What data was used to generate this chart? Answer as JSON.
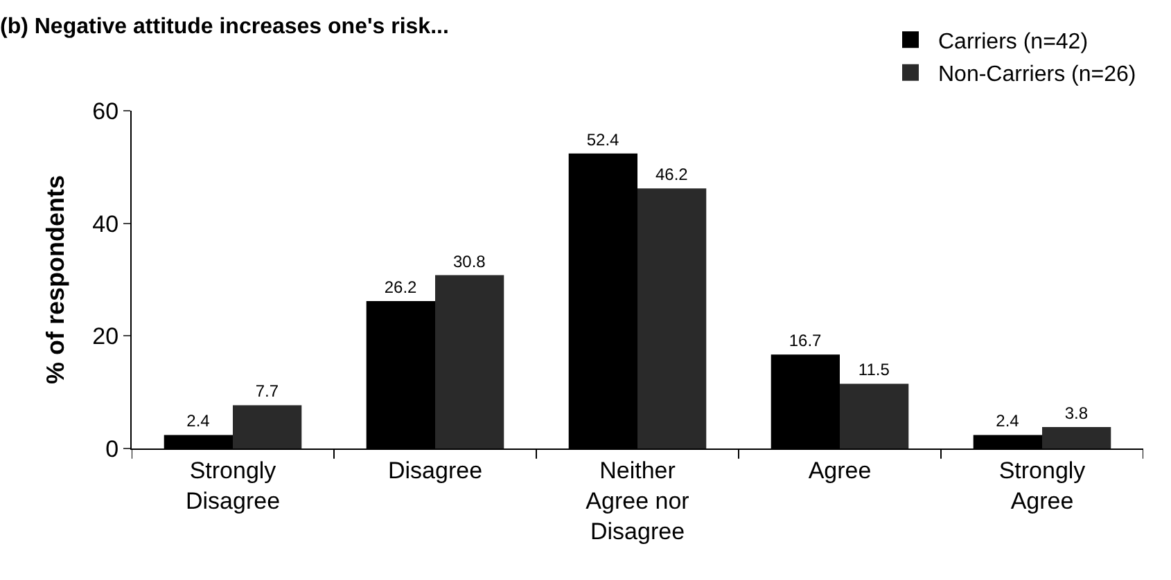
{
  "chart_data": {
    "type": "bar",
    "title": "(b) Negative attitude increases one's risk...",
    "ylabel": "% of respondents",
    "categories": [
      "Strongly Disagree",
      "Disagree",
      "Neither Agree nor Disagree",
      "Agree",
      "Strongly Agree"
    ],
    "series": [
      {
        "name": "Carriers (n=42)",
        "color": "#000000",
        "values": [
          2.4,
          26.2,
          52.4,
          16.7,
          2.4
        ]
      },
      {
        "name": "Non-Carriers (n=26)",
        "color": "#2a2a2a",
        "values": [
          7.7,
          30.8,
          46.2,
          11.5,
          3.8
        ]
      }
    ],
    "ylim": [
      0,
      60
    ],
    "yticks": [
      0,
      20,
      40,
      60
    ],
    "legend": "top right",
    "data_labels": true
  }
}
